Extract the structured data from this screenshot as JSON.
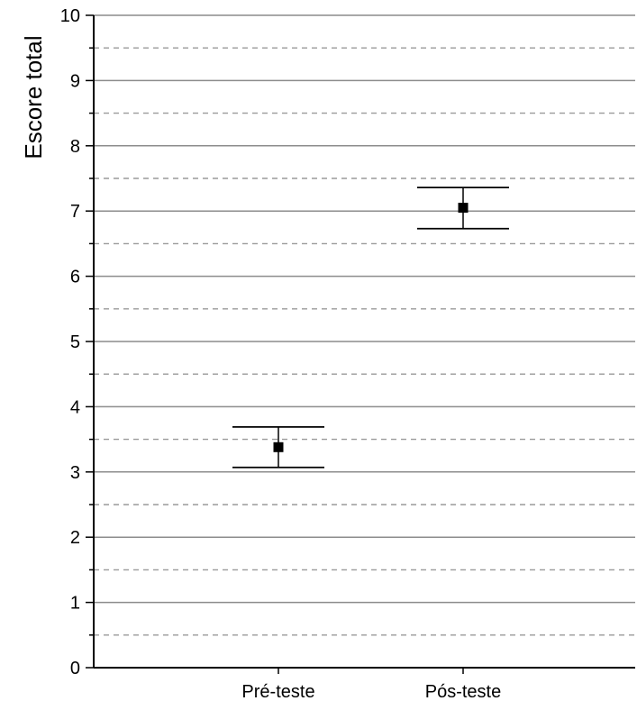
{
  "chart_data": {
    "type": "scatter",
    "title": "",
    "ylabel": "Escore total",
    "xlabel": "",
    "categories": [
      "Pré-teste",
      "Pós-teste"
    ],
    "series": [
      {
        "values": [
          3.38,
          7.05
        ],
        "error_low": [
          3.07,
          6.73
        ],
        "error_high": [
          3.69,
          7.36
        ]
      }
    ],
    "ylim": [
      0,
      10
    ],
    "yticks": [
      "0",
      "1",
      "2",
      "3",
      "4",
      "5",
      "6",
      "7",
      "8",
      "9",
      "10"
    ],
    "grid": {
      "major": "solid",
      "minor": "dashed"
    },
    "marker": "square",
    "colors": {
      "marker": "#000000",
      "grid_major": "#8c8c8c",
      "grid_minor": "#9a9a9a",
      "axis": "#000000"
    }
  }
}
